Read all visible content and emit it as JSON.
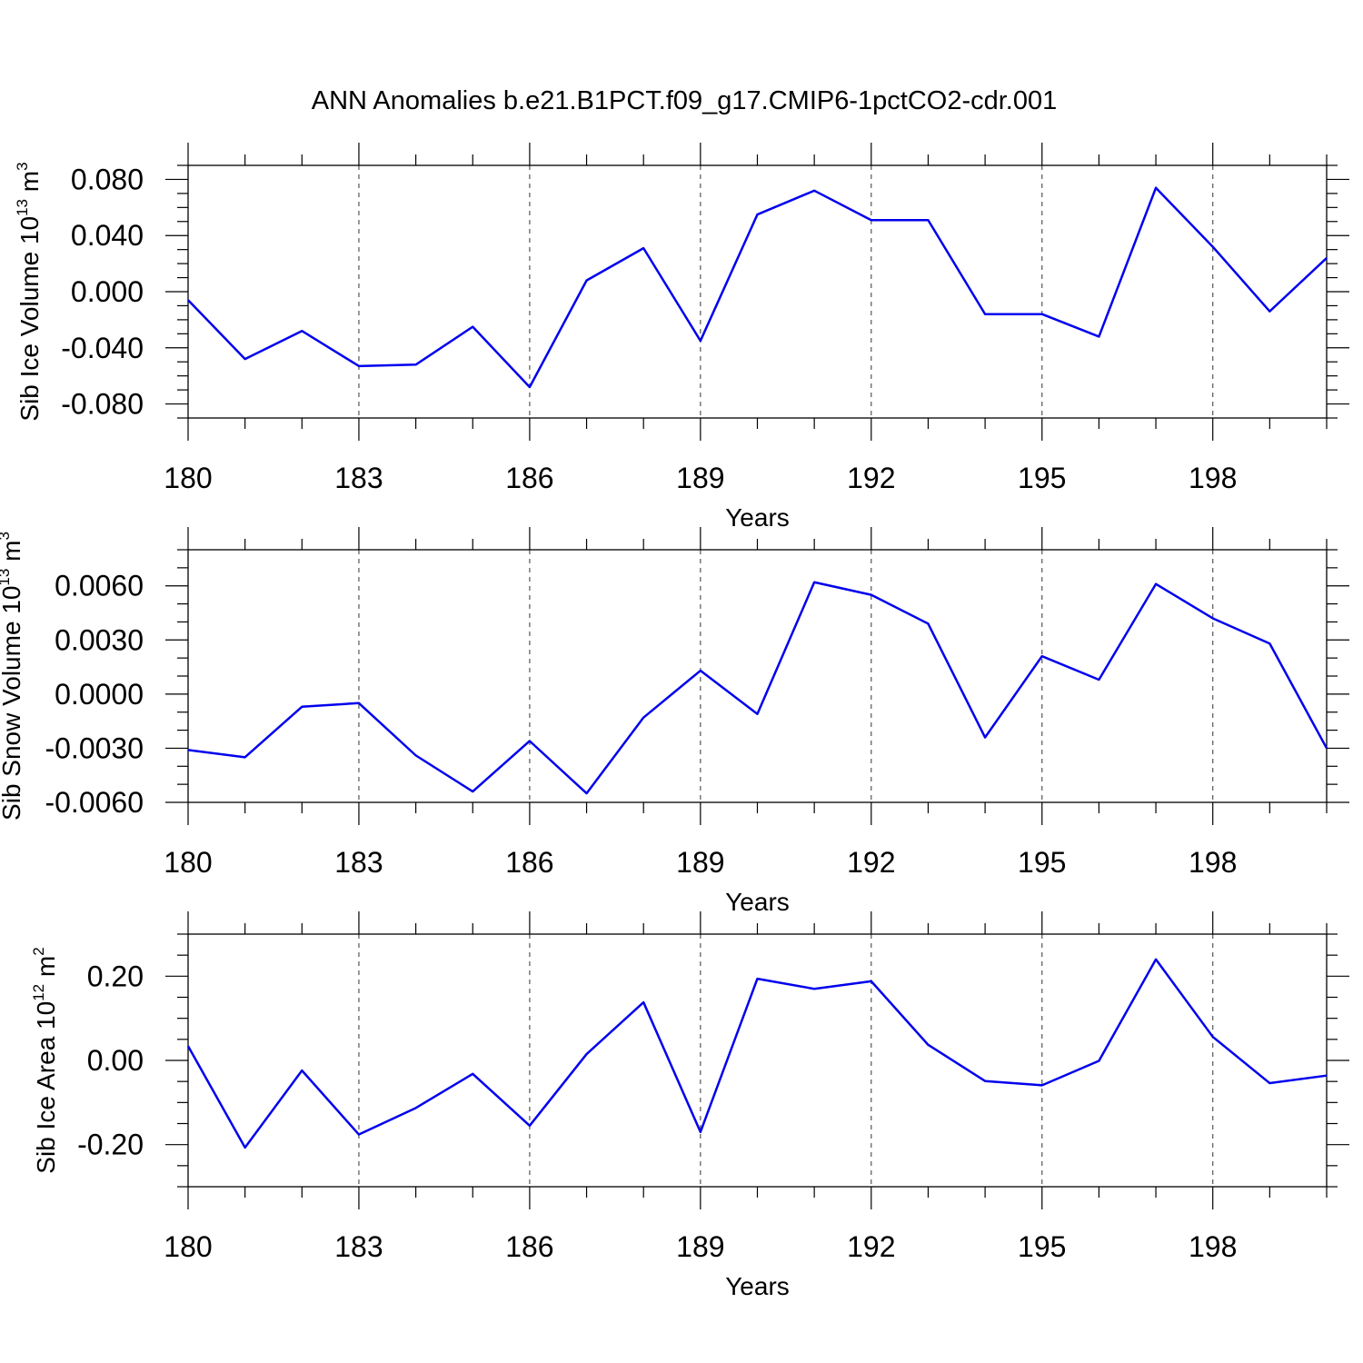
{
  "title": "ANN Anomalies b.e21.B1PCT.f09_g17.CMIP6-1pctCO2-cdr.001",
  "colors": {
    "line": "#0000ee",
    "frame": "#000000",
    "grid": "#555555"
  },
  "chart_data": [
    {
      "type": "line",
      "ylabel": "Sib Ice Volume 10",
      "ylabel_exp": "13",
      "ylabel_unit": " m",
      "ylabel_unit_exp": "3",
      "xlabel": "Years",
      "xlim": [
        180,
        200
      ],
      "ylim": [
        -0.09,
        0.09
      ],
      "x_ticks": [
        180,
        183,
        186,
        189,
        192,
        195,
        198
      ],
      "x_tick_labels": [
        "180",
        "183",
        "186",
        "189",
        "192",
        "195",
        "198"
      ],
      "y_ticks": [
        -0.08,
        -0.04,
        0.0,
        0.04,
        0.08
      ],
      "y_tick_labels": [
        "-0.080",
        "-0.040",
        "0.000",
        "0.040",
        "0.080"
      ],
      "y_minor_step": 0.01,
      "grid": "dashed vertical at major x ticks",
      "x": [
        180,
        181,
        182,
        183,
        184,
        185,
        186,
        187,
        188,
        189,
        190,
        191,
        192,
        193,
        194,
        195,
        196,
        197,
        198,
        199,
        200
      ],
      "series": [
        {
          "values": [
            -0.006,
            -0.048,
            -0.028,
            -0.053,
            -0.052,
            -0.025,
            -0.068,
            0.008,
            0.031,
            -0.035,
            0.055,
            0.072,
            0.051,
            0.051,
            -0.016,
            -0.016,
            -0.032,
            0.074,
            0.032,
            -0.014,
            0.024
          ]
        }
      ]
    },
    {
      "type": "line",
      "ylabel": "Sib Snow Volume 10",
      "ylabel_exp": "13",
      "ylabel_unit": " m",
      "ylabel_unit_exp": "3",
      "xlabel": "Years",
      "xlim": [
        180,
        200
      ],
      "ylim": [
        -0.006,
        0.008
      ],
      "x_ticks": [
        180,
        183,
        186,
        189,
        192,
        195,
        198
      ],
      "x_tick_labels": [
        "180",
        "183",
        "186",
        "189",
        "192",
        "195",
        "198"
      ],
      "y_ticks": [
        -0.006,
        -0.003,
        0.0,
        0.003,
        0.006
      ],
      "y_tick_labels": [
        "-0.0060",
        "-0.0030",
        "0.0000",
        "0.0030",
        "0.0060"
      ],
      "y_minor_step": 0.001,
      "grid": "dashed vertical at major x ticks",
      "x": [
        180,
        181,
        182,
        183,
        184,
        185,
        186,
        187,
        188,
        189,
        190,
        191,
        192,
        193,
        194,
        195,
        196,
        197,
        198,
        199,
        200
      ],
      "series": [
        {
          "values": [
            -0.0031,
            -0.0035,
            -0.0007,
            -0.0005,
            -0.0034,
            -0.0054,
            -0.0026,
            -0.0055,
            -0.0013,
            0.0013,
            -0.0011,
            0.0062,
            0.0055,
            0.0039,
            -0.0024,
            0.0021,
            0.0008,
            0.0061,
            0.0042,
            0.0028,
            -0.003
          ]
        }
      ]
    },
    {
      "type": "line",
      "ylabel": "Sib Ice Area 10",
      "ylabel_exp": "12",
      "ylabel_unit": " m",
      "ylabel_unit_exp": "2",
      "xlabel": "Years",
      "xlim": [
        180,
        200
      ],
      "ylim": [
        -0.3,
        0.3
      ],
      "x_ticks": [
        180,
        183,
        186,
        189,
        192,
        195,
        198
      ],
      "x_tick_labels": [
        "180",
        "183",
        "186",
        "189",
        "192",
        "195",
        "198"
      ],
      "y_ticks": [
        -0.2,
        0.0,
        0.2
      ],
      "y_tick_labels": [
        "-0.20",
        "0.00",
        "0.20"
      ],
      "y_minor_step": 0.05,
      "grid": "dashed vertical at major x ticks",
      "x": [
        180,
        181,
        182,
        183,
        184,
        185,
        186,
        187,
        188,
        189,
        190,
        191,
        192,
        193,
        194,
        195,
        196,
        197,
        198,
        199,
        200
      ],
      "series": [
        {
          "values": [
            0.034,
            -0.207,
            -0.024,
            -0.176,
            -0.113,
            -0.032,
            -0.155,
            0.015,
            0.138,
            -0.17,
            0.194,
            0.17,
            0.188,
            0.037,
            -0.049,
            -0.059,
            -0.001,
            0.24,
            0.056,
            -0.054,
            -0.036
          ]
        }
      ]
    }
  ]
}
